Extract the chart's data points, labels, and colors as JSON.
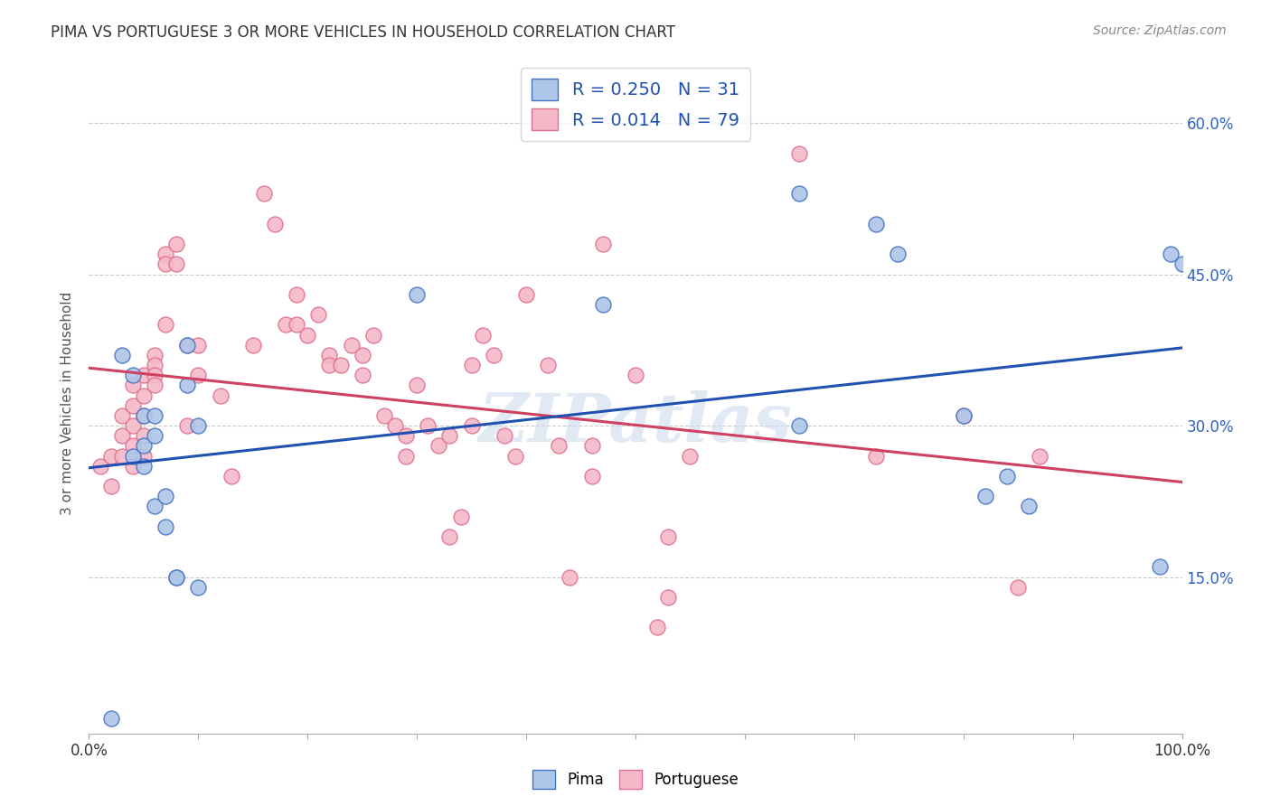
{
  "title": "PIMA VS PORTUGUESE 3 OR MORE VEHICLES IN HOUSEHOLD CORRELATION CHART",
  "source": "Source: ZipAtlas.com",
  "ylabel": "3 or more Vehicles in Household",
  "yticks": [
    "15.0%",
    "30.0%",
    "45.0%",
    "60.0%"
  ],
  "ytick_vals": [
    0.15,
    0.3,
    0.45,
    0.6
  ],
  "xlim": [
    0.0,
    1.0
  ],
  "ylim": [
    -0.005,
    0.65
  ],
  "pima_R": 0.25,
  "pima_N": 31,
  "portuguese_R": 0.014,
  "portuguese_N": 79,
  "pima_color": "#aec6e8",
  "portuguese_color": "#f4b8c8",
  "pima_edge_color": "#4472c4",
  "portuguese_edge_color": "#e07090",
  "pima_line_color": "#2050b0",
  "portuguese_line_color": "#d04060",
  "watermark": "ZIPatlas",
  "pima_x": [
    0.02,
    0.03,
    0.04,
    0.04,
    0.05,
    0.05,
    0.05,
    0.06,
    0.06,
    0.06,
    0.07,
    0.07,
    0.08,
    0.08,
    0.09,
    0.09,
    0.1,
    0.1,
    0.3,
    0.47,
    0.65,
    0.65,
    0.72,
    0.74,
    0.8,
    0.82,
    0.84,
    0.86,
    0.98,
    0.99,
    1.0
  ],
  "pima_y": [
    0.01,
    0.37,
    0.35,
    0.27,
    0.31,
    0.28,
    0.26,
    0.31,
    0.29,
    0.22,
    0.23,
    0.2,
    0.15,
    0.15,
    0.38,
    0.34,
    0.3,
    0.14,
    0.43,
    0.42,
    0.53,
    0.3,
    0.5,
    0.47,
    0.31,
    0.23,
    0.25,
    0.22,
    0.16,
    0.47,
    0.46
  ],
  "portuguese_x": [
    0.01,
    0.02,
    0.02,
    0.03,
    0.03,
    0.03,
    0.04,
    0.04,
    0.04,
    0.04,
    0.04,
    0.05,
    0.05,
    0.05,
    0.05,
    0.05,
    0.06,
    0.06,
    0.06,
    0.06,
    0.07,
    0.07,
    0.07,
    0.08,
    0.08,
    0.09,
    0.09,
    0.1,
    0.1,
    0.12,
    0.13,
    0.15,
    0.16,
    0.17,
    0.18,
    0.19,
    0.19,
    0.2,
    0.21,
    0.22,
    0.22,
    0.23,
    0.24,
    0.25,
    0.25,
    0.26,
    0.27,
    0.28,
    0.29,
    0.29,
    0.3,
    0.31,
    0.32,
    0.33,
    0.33,
    0.34,
    0.35,
    0.35,
    0.36,
    0.37,
    0.38,
    0.39,
    0.4,
    0.42,
    0.43,
    0.44,
    0.46,
    0.46,
    0.47,
    0.5,
    0.52,
    0.53,
    0.53,
    0.55,
    0.65,
    0.72,
    0.8,
    0.85,
    0.87
  ],
  "portuguese_y": [
    0.26,
    0.27,
    0.24,
    0.31,
    0.29,
    0.27,
    0.34,
    0.32,
    0.3,
    0.28,
    0.26,
    0.35,
    0.33,
    0.31,
    0.29,
    0.27,
    0.37,
    0.36,
    0.35,
    0.34,
    0.47,
    0.46,
    0.4,
    0.48,
    0.46,
    0.38,
    0.3,
    0.38,
    0.35,
    0.33,
    0.25,
    0.38,
    0.53,
    0.5,
    0.4,
    0.43,
    0.4,
    0.39,
    0.41,
    0.37,
    0.36,
    0.36,
    0.38,
    0.37,
    0.35,
    0.39,
    0.31,
    0.3,
    0.29,
    0.27,
    0.34,
    0.3,
    0.28,
    0.29,
    0.19,
    0.21,
    0.36,
    0.3,
    0.39,
    0.37,
    0.29,
    0.27,
    0.43,
    0.36,
    0.28,
    0.15,
    0.28,
    0.25,
    0.48,
    0.35,
    0.1,
    0.19,
    0.13,
    0.27,
    0.57,
    0.27,
    0.31,
    0.14,
    0.27
  ]
}
